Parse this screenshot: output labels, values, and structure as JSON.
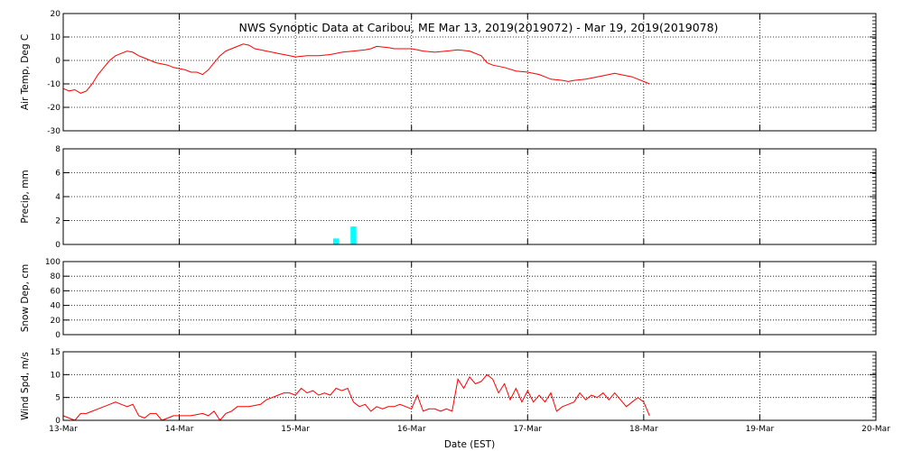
{
  "chart_data": {
    "title": "NWS Synoptic Data at Caribou, ME   Mar 13, 2019(2019072) - Mar 19, 2019(2019078)",
    "xlabel": "Date (EST)",
    "x_ticks": [
      "13-Mar",
      "14-Mar",
      "15-Mar",
      "16-Mar",
      "17-Mar",
      "18-Mar",
      "19-Mar",
      "20-Mar"
    ],
    "x_range_days": [
      0,
      7
    ],
    "grid": true,
    "panels": [
      {
        "id": "air-temp",
        "type": "line",
        "ylabel": "Air Temp, Deg C",
        "ylim": [
          -30,
          20
        ],
        "y_ticks": [
          "20",
          "10",
          "0",
          "-10",
          "-20",
          "-30"
        ],
        "color": "#ff0000",
        "x": [
          0,
          0.05,
          0.1,
          0.15,
          0.2,
          0.25,
          0.3,
          0.35,
          0.4,
          0.45,
          0.5,
          0.55,
          0.6,
          0.65,
          0.7,
          0.75,
          0.8,
          0.85,
          0.9,
          0.95,
          1.0,
          1.05,
          1.1,
          1.15,
          1.2,
          1.25,
          1.3,
          1.35,
          1.4,
          1.45,
          1.5,
          1.55,
          1.6,
          1.65,
          1.7,
          1.75,
          1.8,
          1.85,
          1.9,
          1.95,
          2.0,
          2.1,
          2.2,
          2.3,
          2.4,
          2.5,
          2.6,
          2.65,
          2.7,
          2.8,
          2.85,
          2.9,
          3.0,
          3.05,
          3.1,
          3.2,
          3.3,
          3.4,
          3.5,
          3.6,
          3.65,
          3.7,
          3.8,
          3.9,
          4.0,
          4.1,
          4.15,
          4.2,
          4.3,
          4.35,
          4.4,
          4.5,
          4.6,
          4.7,
          4.75,
          4.8,
          4.9,
          4.95,
          5.0,
          5.05
        ],
        "values": [
          -12,
          -13,
          -12.5,
          -14,
          -13,
          -10,
          -6,
          -3,
          0,
          2,
          3,
          4,
          3.5,
          2,
          1,
          0,
          -1,
          -1.5,
          -2,
          -3,
          -3.5,
          -4,
          -5,
          -5,
          -6,
          -4,
          -1,
          2,
          4,
          5,
          6,
          7,
          6.5,
          5,
          4.5,
          4,
          3.5,
          3,
          2.5,
          2,
          1.5,
          2,
          2,
          2.5,
          3.5,
          4,
          4.5,
          5,
          6,
          5.5,
          5,
          5,
          5,
          4.5,
          4,
          3.5,
          4,
          4.5,
          4,
          2,
          -1,
          -2,
          -3,
          -4.5,
          -5,
          -6,
          -7,
          -8,
          -8.5,
          -9,
          -8.5,
          -8,
          -7,
          -6,
          -5.5,
          -6,
          -7,
          -8,
          -9,
          -10
        ]
      },
      {
        "id": "precip",
        "type": "bar",
        "ylabel": "Precip, mm",
        "ylim": [
          0,
          8
        ],
        "y_ticks": [
          "8",
          "6",
          "4",
          "2",
          "0"
        ],
        "color": "#00ffff",
        "x": [
          2.35,
          2.5
        ],
        "values": [
          0.5,
          1.5
        ],
        "bar_width_days": 0.05
      },
      {
        "id": "snow-depth",
        "type": "line",
        "ylabel": "Snow Dep, cm",
        "ylim": [
          0,
          100
        ],
        "y_ticks": [
          "100",
          "80",
          "60",
          "40",
          "20",
          "0"
        ],
        "color": "#ff0000",
        "x": [],
        "values": []
      },
      {
        "id": "wind-speed",
        "type": "line",
        "ylabel": "Wind Spd, m/s",
        "ylim": [
          0,
          15
        ],
        "y_ticks": [
          "15",
          "10",
          "5",
          "0"
        ],
        "color": "#ff0000",
        "x": [
          0,
          0.05,
          0.1,
          0.15,
          0.2,
          0.25,
          0.3,
          0.35,
          0.4,
          0.45,
          0.5,
          0.55,
          0.6,
          0.65,
          0.7,
          0.75,
          0.8,
          0.85,
          0.9,
          0.95,
          1.0,
          1.1,
          1.2,
          1.25,
          1.3,
          1.35,
          1.4,
          1.45,
          1.5,
          1.6,
          1.7,
          1.75,
          1.8,
          1.85,
          1.9,
          1.95,
          2.0,
          2.05,
          2.1,
          2.15,
          2.2,
          2.25,
          2.3,
          2.35,
          2.4,
          2.45,
          2.5,
          2.55,
          2.6,
          2.65,
          2.7,
          2.75,
          2.8,
          2.85,
          2.9,
          2.95,
          3.0,
          3.05,
          3.1,
          3.15,
          3.2,
          3.25,
          3.3,
          3.35,
          3.4,
          3.45,
          3.5,
          3.55,
          3.6,
          3.65,
          3.7,
          3.75,
          3.8,
          3.85,
          3.9,
          3.95,
          4.0,
          4.05,
          4.1,
          4.15,
          4.2,
          4.25,
          4.3,
          4.35,
          4.4,
          4.45,
          4.5,
          4.55,
          4.6,
          4.65,
          4.7,
          4.75,
          4.8,
          4.85,
          4.9,
          4.95,
          5.0,
          5.05
        ],
        "values": [
          1,
          0.5,
          0,
          1.5,
          1.5,
          2,
          2.5,
          3,
          3.5,
          4,
          3.5,
          3,
          3.5,
          1,
          0.5,
          1.5,
          1.5,
          0,
          0.5,
          1,
          1,
          1,
          1.5,
          1,
          2,
          0,
          1.5,
          2,
          3,
          3,
          3.5,
          4.5,
          5,
          5.5,
          6,
          6,
          5.5,
          7,
          6,
          6.5,
          5.5,
          6,
          5.5,
          7,
          6.5,
          7,
          4,
          3,
          3.5,
          2,
          3,
          2.5,
          3,
          3,
          3.5,
          3,
          2.5,
          5.5,
          2,
          2.5,
          2.5,
          2,
          2.5,
          2,
          9,
          7,
          9.5,
          8,
          8.5,
          10,
          9,
          6,
          8,
          4.5,
          7,
          4,
          6.5,
          4,
          5.5,
          4,
          6,
          2,
          3,
          3.5,
          4,
          6,
          4.5,
          5.5,
          5,
          6,
          4.5,
          6,
          4.5,
          3,
          4,
          5,
          4,
          1
        ]
      }
    ]
  }
}
